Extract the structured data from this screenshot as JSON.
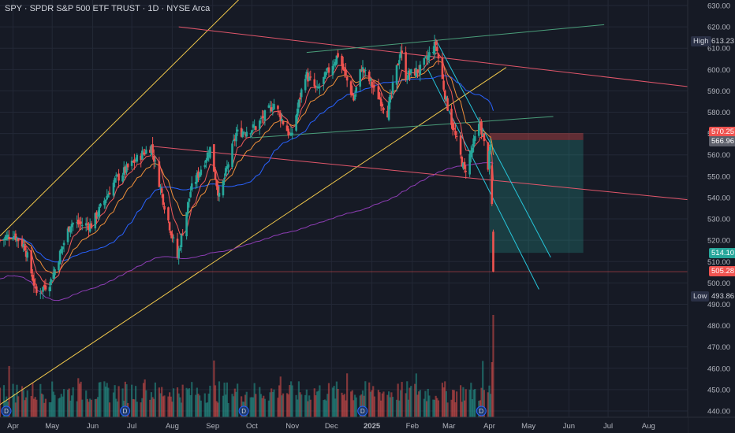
{
  "header": {
    "symbol_line": "SPY · SPDR S&P 500 ETF TRUST · 1D · NYSE Arca"
  },
  "colors": {
    "up": "#26a69a",
    "down": "#ef5350",
    "background": "#161a25",
    "grid": "#232836",
    "axis_text": "#b2b5be",
    "ema_red": "#f05a5a",
    "ema_orange": "#f0903a",
    "sma_blue": "#2962ff",
    "sma_purple": "#8e3db5",
    "channel_yellow": "#f2c94c",
    "resist_red": "#e0566a",
    "support_green": "#4a9e7a",
    "trend_cyan": "#26c6da"
  },
  "price_axis": {
    "ticks": [
      "630.00",
      "620.00",
      "610.00",
      "600.00",
      "590.00",
      "580.00",
      "570.00",
      "560.00",
      "550.00",
      "540.00",
      "530.00",
      "520.00",
      "510.00",
      "500.00",
      "490.00",
      "480.00",
      "470.00",
      "460.00",
      "450.00",
      "440.00"
    ]
  },
  "time_axis": {
    "labels": [
      "Apr",
      "May",
      "Jun",
      "Jul",
      "Aug",
      "Sep",
      "Oct",
      "Nov",
      "Dec",
      "2025",
      "Feb",
      "Mar",
      "Apr",
      "May",
      "Jun",
      "Jul",
      "Aug"
    ]
  },
  "price_tags": {
    "high_label": "High",
    "high_value": "613.23",
    "target_value": "570.25",
    "entry_value": "566.96",
    "stop_value": "514.10",
    "last_value": "505.28",
    "low_label": "Low",
    "low_value": "493.86"
  },
  "events_marker": "D",
  "chart_data": {
    "type": "candlestick",
    "title": "SPY · SPDR S&P 500 ETF TRUST · 1D · NYSE Arca",
    "ylim": [
      437,
      632
    ],
    "x_range": [
      "2024-03-22",
      "2025-08-31"
    ],
    "high": 613.23,
    "low": 493.86,
    "last": 505.28,
    "position_target": 570.25,
    "position_entry": 566.96,
    "position_stop": 514.1,
    "series": [
      {
        "name": "SPY",
        "anchors": [
          [
            "2024-03-22",
            520
          ],
          [
            "2024-04-01",
            523
          ],
          [
            "2024-04-10",
            517
          ],
          [
            "2024-04-19",
            495
          ],
          [
            "2024-04-30",
            501
          ],
          [
            "2024-05-15",
            528
          ],
          [
            "2024-05-31",
            527
          ],
          [
            "2024-06-18",
            548
          ],
          [
            "2024-07-10",
            561
          ],
          [
            "2024-07-16",
            564
          ],
          [
            "2024-07-25",
            539
          ],
          [
            "2024-08-05",
            512
          ],
          [
            "2024-08-15",
            543
          ],
          [
            "2024-08-30",
            563
          ],
          [
            "2024-09-06",
            540
          ],
          [
            "2024-09-19",
            570
          ],
          [
            "2024-10-04",
            573
          ],
          [
            "2024-10-18",
            584
          ],
          [
            "2024-10-31",
            568
          ],
          [
            "2024-11-11",
            598
          ],
          [
            "2024-11-20",
            590
          ],
          [
            "2024-12-06",
            607
          ],
          [
            "2024-12-18",
            586
          ],
          [
            "2024-12-24",
            601
          ],
          [
            "2025-01-13",
            580
          ],
          [
            "2025-01-23",
            609
          ],
          [
            "2025-01-27",
            597
          ],
          [
            "2025-02-07",
            600
          ],
          [
            "2025-02-19",
            612
          ],
          [
            "2025-02-27",
            585
          ],
          [
            "2025-03-13",
            552
          ],
          [
            "2025-03-25",
            575
          ],
          [
            "2025-03-31",
            555
          ],
          [
            "2025-04-02",
            564
          ],
          [
            "2025-04-03",
            537
          ],
          [
            "2025-04-04",
            505.28
          ]
        ]
      }
    ],
    "annotations": [
      "yellow ascending channel",
      "red descending resistance lines",
      "green rising lines",
      "cyan falling trendlines",
      "long position box"
    ]
  }
}
